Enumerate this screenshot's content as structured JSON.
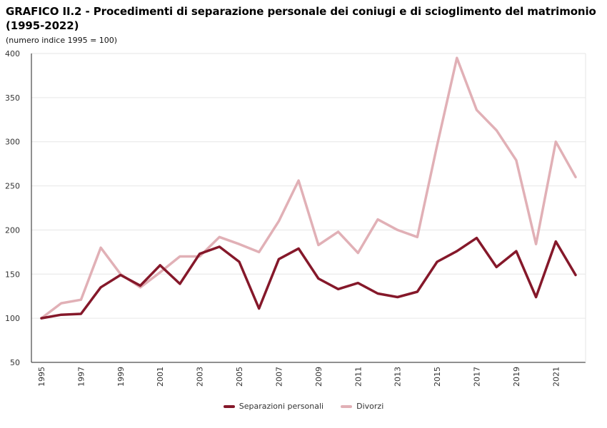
{
  "title": "GRAFICO II.2 - Procedimenti di separazione personale dei coniugi e di scioglimento del matrimonio (1995-2022)",
  "subtitle": "(numero indice 1995 = 100)",
  "chart_data": {
    "type": "line",
    "title": "GRAFICO II.2 - Procedimenti di separazione personale dei coniugi e di scioglimento del matrimonio (1995-2022)",
    "subtitle": "(numero indice 1995 = 100)",
    "xlabel": "",
    "ylabel": "",
    "x": [
      1995,
      1996,
      1997,
      1998,
      1999,
      2000,
      2001,
      2002,
      2003,
      2004,
      2005,
      2006,
      2007,
      2008,
      2009,
      2010,
      2011,
      2012,
      2013,
      2014,
      2015,
      2016,
      2017,
      2018,
      2019,
      2020,
      2021,
      2022
    ],
    "x_tick_labels": [
      "1995",
      "1997",
      "1999",
      "2001",
      "2003",
      "2005",
      "2007",
      "2009",
      "2011",
      "2013",
      "2015",
      "2017",
      "2019",
      "2021"
    ],
    "y_ticks": [
      50,
      100,
      150,
      200,
      250,
      300,
      350,
      400
    ],
    "ylim": [
      50,
      400
    ],
    "grid": "horizontal",
    "legend_position": "bottom-center",
    "series": [
      {
        "name": "Separazioni personali",
        "color": "#85182a",
        "values": [
          100,
          104,
          105,
          135,
          149,
          137,
          160,
          139,
          173,
          181,
          164,
          111,
          167,
          179,
          145,
          133,
          140,
          128,
          124,
          130,
          164,
          176,
          191,
          158,
          176,
          124,
          187,
          149
        ]
      },
      {
        "name": "Divorzi",
        "color": "#e1b0b6",
        "values": [
          100,
          117,
          121,
          180,
          150,
          135,
          152,
          170,
          170,
          192,
          184,
          175,
          210,
          256,
          183,
          198,
          174,
          212,
          200,
          192,
          296,
          395,
          336,
          313,
          279,
          184,
          300,
          260
        ]
      }
    ]
  }
}
